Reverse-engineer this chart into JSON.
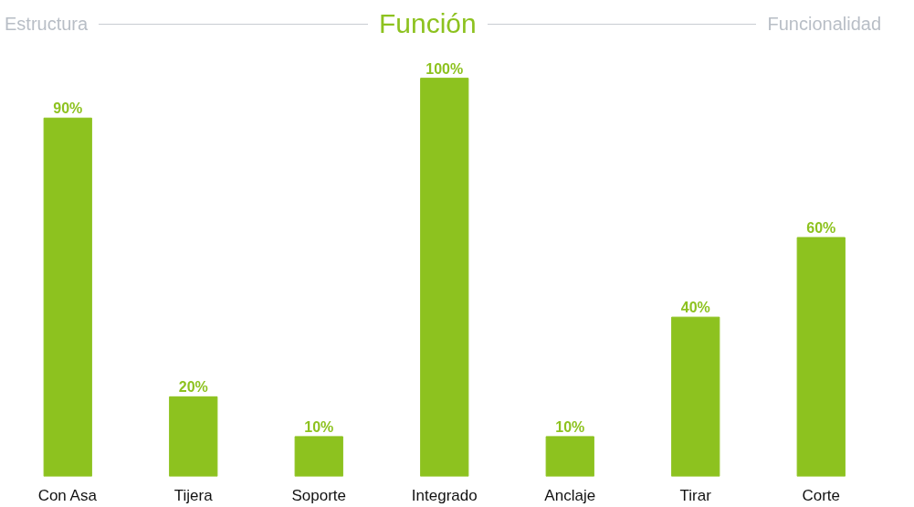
{
  "chart_data": {
    "type": "bar",
    "title": "Función",
    "annotations": [
      "Estructura",
      "Funcionalidad"
    ],
    "categories": [
      "Con Asa",
      "Tijera",
      "Soporte",
      "Integrado",
      "Anclaje",
      "Tirar",
      "Corte"
    ],
    "values": [
      90,
      20,
      10,
      100,
      10,
      40,
      60
    ],
    "color": "#8dc21f",
    "tick_labels": "x",
    "value_labels": [
      "90%",
      "20%",
      "10%",
      "100%",
      "10%",
      "40%",
      "60%"
    ],
    "grid": false
  }
}
